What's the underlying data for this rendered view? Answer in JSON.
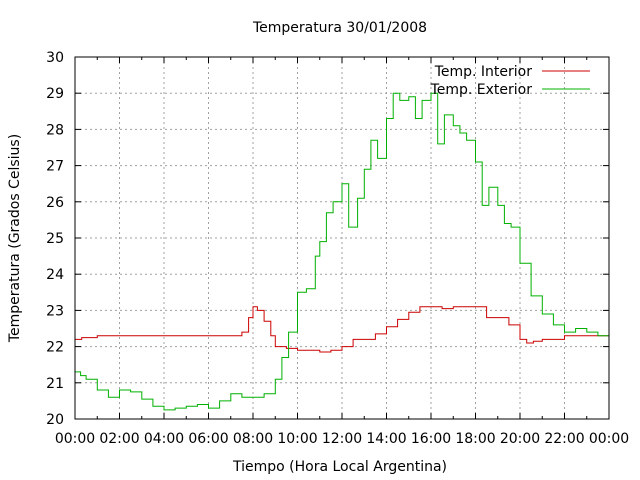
{
  "chart_data": {
    "type": "line",
    "title": "Temperatura 30/01/2008",
    "xlabel": "Tiempo (Hora Local Argentina)",
    "ylabel": "Temperatura (Grados Celsius)",
    "xlim": [
      0,
      24
    ],
    "ylim": [
      20,
      30
    ],
    "x_ticks": [
      "00:00",
      "02:00",
      "04:00",
      "06:00",
      "08:00",
      "10:00",
      "12:00",
      "14:00",
      "16:00",
      "18:00",
      "20:00",
      "22:00",
      "00:00"
    ],
    "y_ticks": [
      "20",
      "21",
      "22",
      "23",
      "24",
      "25",
      "26",
      "27",
      "28",
      "29",
      "30"
    ],
    "grid": true,
    "legend_position": "top-right",
    "series": [
      {
        "name": "Temp. Interior",
        "color": "#cc0000",
        "x": [
          0,
          0.3,
          1,
          2,
          3,
          4,
          5,
          6,
          7,
          7.5,
          7.8,
          8.0,
          8.2,
          8.5,
          8.8,
          9.0,
          9.5,
          10,
          10.5,
          11,
          11.5,
          12,
          12.5,
          13,
          13.5,
          14,
          14.5,
          15,
          15.5,
          16,
          16.5,
          17,
          17.5,
          18,
          18.5,
          19,
          19.5,
          20,
          20.3,
          20.6,
          21,
          22,
          23,
          24
        ],
        "y": [
          22.2,
          22.25,
          22.3,
          22.3,
          22.3,
          22.3,
          22.3,
          22.3,
          22.3,
          22.4,
          22.8,
          23.1,
          23.0,
          22.7,
          22.3,
          22.0,
          21.95,
          21.9,
          21.9,
          21.85,
          21.9,
          22.0,
          22.2,
          22.2,
          22.35,
          22.55,
          22.75,
          22.95,
          23.1,
          23.1,
          23.05,
          23.1,
          23.1,
          23.1,
          22.8,
          22.8,
          22.6,
          22.2,
          22.1,
          22.15,
          22.2,
          22.3,
          22.3,
          22.3
        ]
      },
      {
        "name": "Temp. Exterior",
        "color": "#00b000",
        "x": [
          0,
          0.25,
          0.5,
          1,
          1.5,
          2,
          2.5,
          3,
          3.5,
          4,
          4.5,
          5,
          5.5,
          6,
          6.5,
          7,
          7.5,
          8,
          8.5,
          9,
          9.3,
          9.6,
          10,
          10.4,
          10.8,
          11,
          11.3,
          11.6,
          12,
          12.3,
          12.7,
          13,
          13.3,
          13.6,
          14,
          14.3,
          14.6,
          15,
          15.3,
          15.6,
          16,
          16.3,
          16.6,
          17,
          17.3,
          17.6,
          18,
          18.3,
          18.6,
          19,
          19.3,
          19.6,
          20,
          20.5,
          21,
          21.5,
          22,
          22.5,
          23,
          23.5,
          24
        ],
        "y": [
          21.3,
          21.2,
          21.1,
          20.8,
          20.6,
          20.8,
          20.75,
          20.55,
          20.35,
          20.25,
          20.3,
          20.35,
          20.4,
          20.3,
          20.5,
          20.7,
          20.6,
          20.6,
          20.7,
          21.1,
          21.7,
          22.4,
          23.5,
          23.6,
          24.5,
          24.9,
          25.7,
          26.0,
          26.5,
          25.3,
          26.1,
          26.9,
          27.7,
          27.2,
          28.3,
          29.0,
          28.8,
          28.9,
          28.3,
          28.8,
          29.0,
          27.6,
          28.4,
          28.1,
          27.9,
          27.7,
          27.1,
          25.9,
          26.4,
          25.9,
          25.4,
          25.3,
          24.3,
          23.4,
          22.9,
          22.6,
          22.4,
          22.5,
          22.4,
          22.3,
          22.6
        ]
      }
    ]
  }
}
